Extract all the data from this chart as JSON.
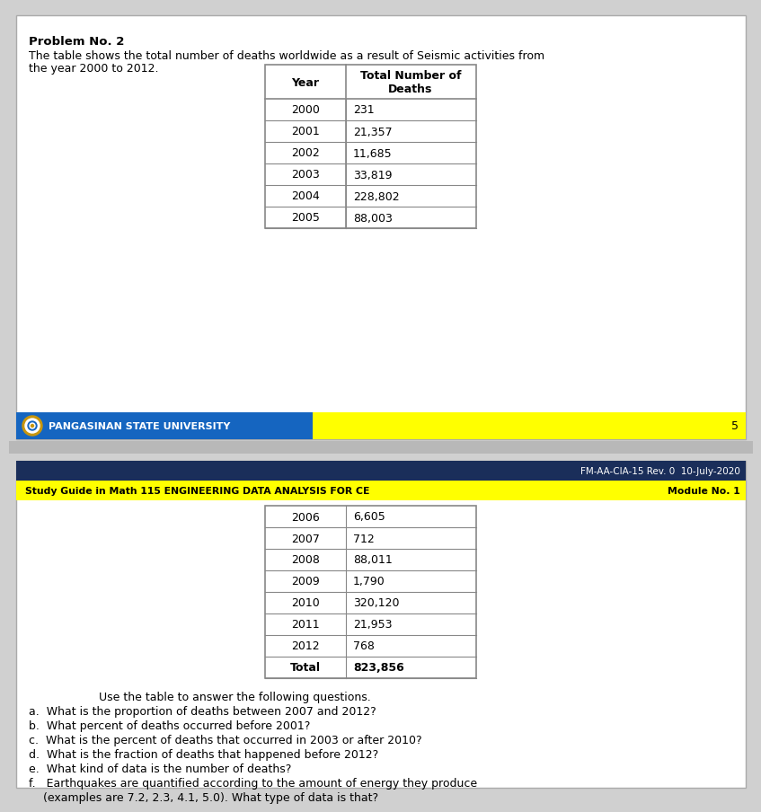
{
  "problem_title": "Problem No. 2",
  "problem_text_line1": "The table shows the total number of deaths worldwide as a result of Seismic activities from",
  "problem_text_line2": "the year 2000 to 2012.",
  "table_header_col1": "Year",
  "table_header_col2": "Total Number of\nDeaths",
  "table_data_top": [
    [
      "2000",
      "231"
    ],
    [
      "2001",
      "21,357"
    ],
    [
      "2002",
      "11,685"
    ],
    [
      "2003",
      "33,819"
    ],
    [
      "2004",
      "228,802"
    ],
    [
      "2005",
      "88,003"
    ]
  ],
  "table_data_bottom": [
    [
      "2006",
      "6,605"
    ],
    [
      "2007",
      "712"
    ],
    [
      "2008",
      "88,011"
    ],
    [
      "2009",
      "1,790"
    ],
    [
      "2010",
      "320,120"
    ],
    [
      "2011",
      "21,953"
    ],
    [
      "2012",
      "768"
    ],
    [
      "Total",
      "823,856"
    ]
  ],
  "footer_blue_text": "PANGASINAN STATE UNIVERSITY",
  "footer_page_number": "5",
  "header2_text": "FM-AA-CIA-15 Rev. 0  10-July-2020",
  "subheader2_left": "Study Guide in Math 115 ENGINEERING DATA ANALYSIS FOR CE",
  "subheader2_right": "Module No. 1",
  "questions_intro": "Use the table to answer the following questions.",
  "questions": [
    "a.  What is the proportion of deaths between 2007 and 2012?",
    "b.  What percent of deaths occurred before 2001?",
    "c.  What is the percent of deaths that occurred in 2003 or after 2010?",
    "d.  What is the fraction of deaths that happened before 2012?",
    "e.  What kind of data is the number of deaths?",
    "f.   Earthquakes are quantified according to the amount of energy they produce\n     (examples are 7.2, 2.3, 4.1, 5.0). What type of data is that?"
  ],
  "blue_color": "#1565c0",
  "yellow_color": "#ffff00",
  "dark_navy": "#1a2e5a",
  "table_border_color": "#888888",
  "page_bg": "#d0d0d0",
  "panel_bg": "#ffffff",
  "panel_border": "#aaaaaa"
}
